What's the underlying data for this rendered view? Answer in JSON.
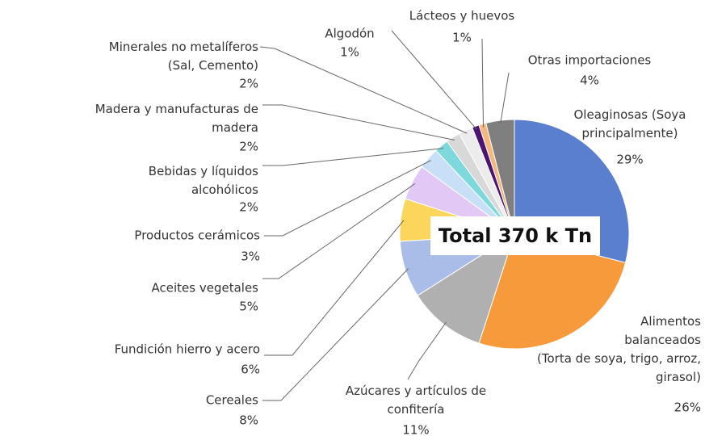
{
  "chart_data": {
    "type": "pie",
    "categories": [
      "Oleaginosas (Soya\nprincipalmente)",
      "Alimentos\nbalanceados\n(Torta de soya, trigo, arroz,\ngirasol)",
      "Azúcares y artículos de\nconfitería",
      "Cereales",
      "Fundición hierro y acero",
      "Aceites vegetales",
      "Productos cerámicos",
      "Bebidas y líquidos\nalcohólicos",
      "Madera y manufacturas de\nmadera",
      "Minerales no metalíferos\n(Sal, Cemento)",
      "Algodón",
      "Lácteos y huevos",
      "Otras importaciones"
    ],
    "values": [
      29,
      26,
      11,
      8,
      6,
      5,
      3,
      2,
      2,
      2,
      1,
      1,
      4
    ],
    "value_labels": [
      "29%",
      "26%",
      "11%",
      "8%",
      "6%",
      "5%",
      "3%",
      "2%",
      "2%",
      "2%",
      "1%",
      "1%",
      "4%"
    ],
    "colors": [
      "#5b7fcf",
      "#f79a3c",
      "#b0b0b0",
      "#a9bde8",
      "#fbd65a",
      "#e2c8f5",
      "#c8e0f7",
      "#7ed9dc",
      "#d8d8d8",
      "#ececec",
      "#4b1470",
      "#f5b77a",
      "#7f7f7f"
    ],
    "annotation": "Total 370 k Tn"
  }
}
